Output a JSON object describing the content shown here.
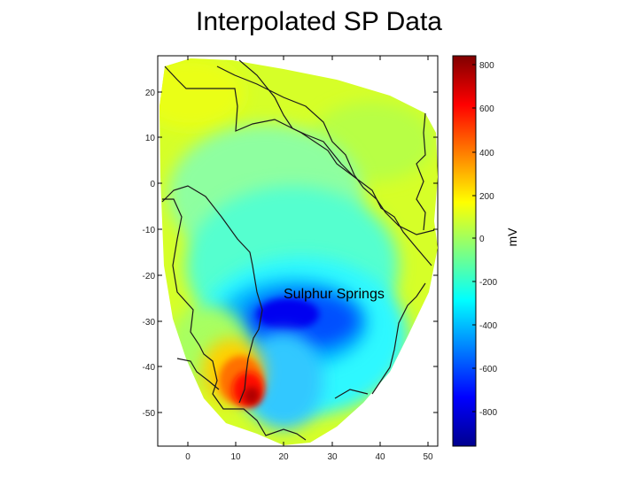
{
  "chart_data": {
    "type": "heatmap",
    "title": "Interpolated SP Data",
    "xlabel": "",
    "ylabel": "",
    "xlim": [
      -6,
      50
    ],
    "ylim": [
      -57,
      28
    ],
    "x_ticks": [
      "0",
      "10",
      "20",
      "30",
      "40",
      "50"
    ],
    "y_ticks": [
      "20",
      "10",
      "0",
      "-10",
      "-20",
      "-30",
      "-40",
      "-50"
    ],
    "colorbar": {
      "label": "mV",
      "range": [
        -950,
        830
      ],
      "ticks": [
        "800",
        "600",
        "400",
        "200",
        "0",
        "-200",
        "-400",
        "-600",
        "-800"
      ],
      "colormap": "jet"
    },
    "annotations": [
      {
        "text": "Sulphur Springs",
        "x": 15,
        "y": -24.5
      }
    ],
    "field_features": [
      {
        "name": "high",
        "x": 12,
        "y": -45,
        "value": 830
      },
      {
        "name": "low",
        "x": 24,
        "y": -28,
        "value": -900
      }
    ],
    "background_value": 80,
    "grid": false
  }
}
